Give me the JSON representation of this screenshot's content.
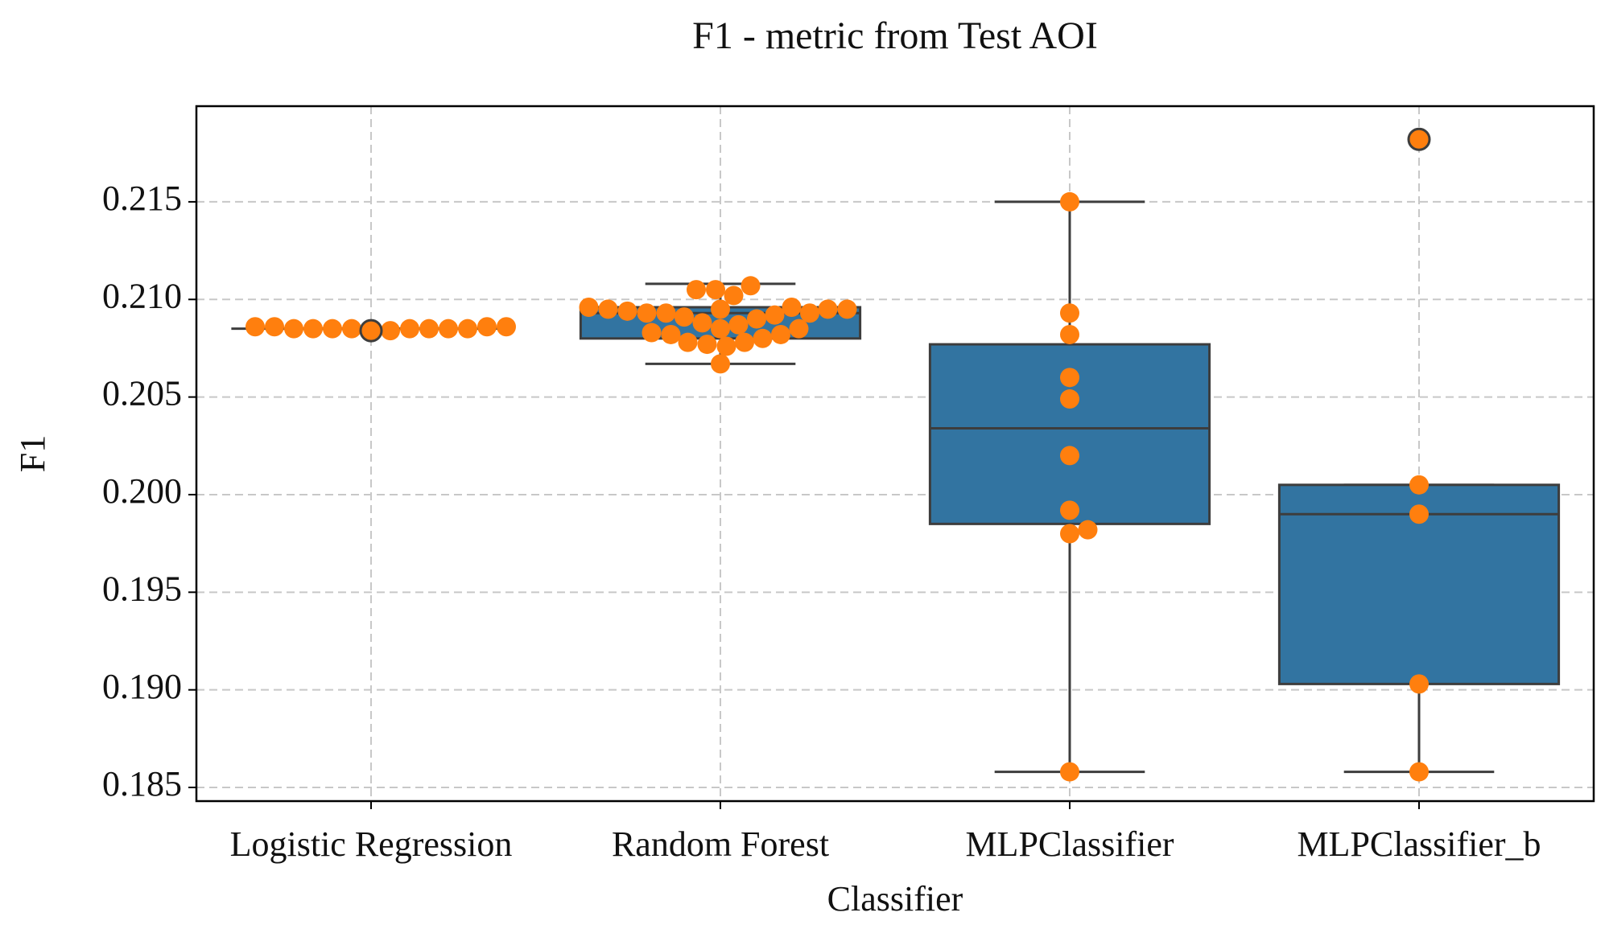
{
  "chart_data": {
    "type": "box",
    "title": "F1 - metric from Test AOI",
    "x_label": "Classifier",
    "y_label": "F1",
    "categories": [
      "Logistic Regression",
      "Random Forest",
      "MLPClassifier",
      "MLPClassifier_b"
    ],
    "boxes": [
      {
        "q1": 0.2085,
        "median": 0.2085,
        "q3": 0.2085,
        "whislo": 0.2085,
        "whishi": 0.2085,
        "outliers": [
          0.2084
        ]
      },
      {
        "q1": 0.208,
        "median": 0.2093,
        "q3": 0.2096,
        "whislo": 0.2067,
        "whishi": 0.2108,
        "outliers": []
      },
      {
        "q1": 0.1985,
        "median": 0.2034,
        "q3": 0.2077,
        "whislo": 0.1858,
        "whishi": 0.215,
        "outliers": []
      },
      {
        "q1": 0.1903,
        "median": 0.199,
        "q3": 0.2005,
        "whislo": 0.1858,
        "whishi": 0.2005,
        "outliers": [
          0.2182
        ]
      }
    ],
    "points": [
      [
        0.2086,
        0.2086,
        0.2085,
        0.2085,
        0.2085,
        0.2085,
        0.2084,
        0.2084,
        0.2085,
        0.2085,
        0.2085,
        0.2085,
        0.2086,
        0.2086
      ],
      [
        0.2096,
        0.2096,
        0.2095,
        0.2095,
        0.2095,
        0.2095,
        0.2094,
        0.2093,
        0.2093,
        0.2093,
        0.2092,
        0.2091,
        0.209,
        0.2088,
        0.2087,
        0.2085,
        0.2085,
        0.2083,
        0.2082,
        0.2082,
        0.208,
        0.2078,
        0.2078,
        0.2077,
        0.2076,
        0.2102,
        0.2105,
        0.2105,
        0.2107,
        0.2067
      ],
      [
        0.215,
        0.2093,
        0.2082,
        0.206,
        0.2049,
        0.202,
        0.1992,
        0.1982,
        0.198,
        0.1858
      ],
      [
        0.2182,
        0.2005,
        0.199,
        0.1903,
        0.1858
      ]
    ],
    "box_color": "#3274a1",
    "point_color": "#ff7f0e",
    "ylim": [
      0.1843,
      0.2199
    ],
    "yticks": [
      0.185,
      {
        "value": 0.19,
        "label": "0.190"
      },
      0.195,
      {
        "value": 0.2,
        "label": "0.200"
      },
      0.205,
      {
        "value": 0.21,
        "label": "0.210"
      },
      0.215
    ],
    "grid": true
  }
}
